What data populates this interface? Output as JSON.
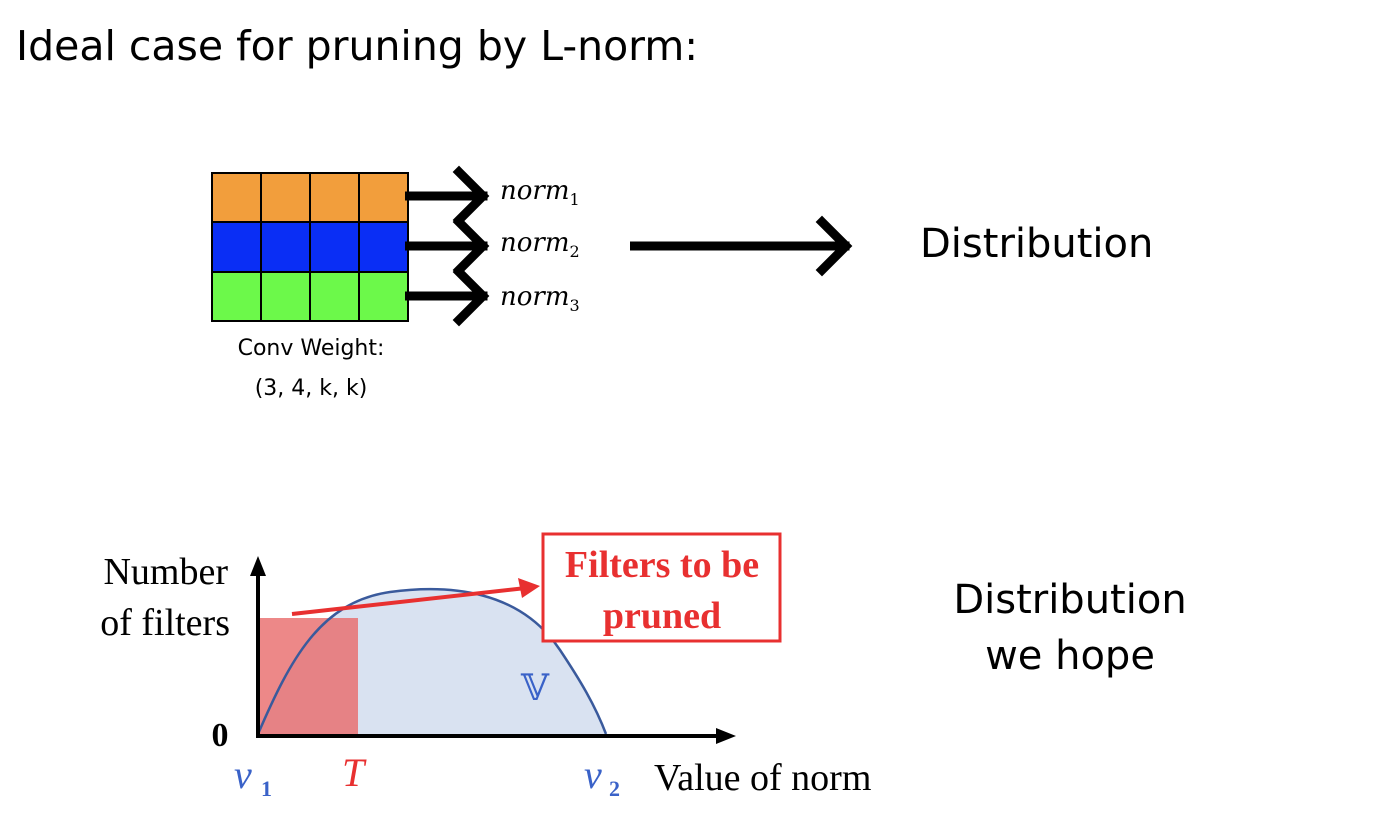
{
  "title": "Ideal case for pruning by L-norm:",
  "conv": {
    "rows": [
      {
        "color": "#F29E3C",
        "norm_base": "norm",
        "norm_sub": "1"
      },
      {
        "color": "#0A2EF5",
        "norm_base": "norm",
        "norm_sub": "2"
      },
      {
        "color": "#6CF94A",
        "norm_base": "norm",
        "norm_sub": "3"
      }
    ],
    "columns": 4,
    "caption_line1": "Conv Weight:",
    "caption_line2": "(3, 4, k, k)"
  },
  "distribution_label": "Distribution",
  "hope_label_line1": "Distribution",
  "hope_label_line2": "we hope",
  "plot": {
    "y_label_line1": "Number",
    "y_label_line2": "of filters",
    "y_zero": "0",
    "v1_base": "v",
    "v1_sub": "1",
    "threshold": "T",
    "v2_base": "v",
    "v2_sub": "2",
    "x_label": "Value of norm",
    "set_label": "𝕍",
    "callout_line1": "Filters to be",
    "callout_line2": "pruned",
    "colors": {
      "pruned_fill": "#E86A6A",
      "curve_fill": "#D9E2F1",
      "curve_stroke": "#3A5A9C",
      "callout": "#E83030",
      "blue_label": "#3A62C8"
    }
  }
}
